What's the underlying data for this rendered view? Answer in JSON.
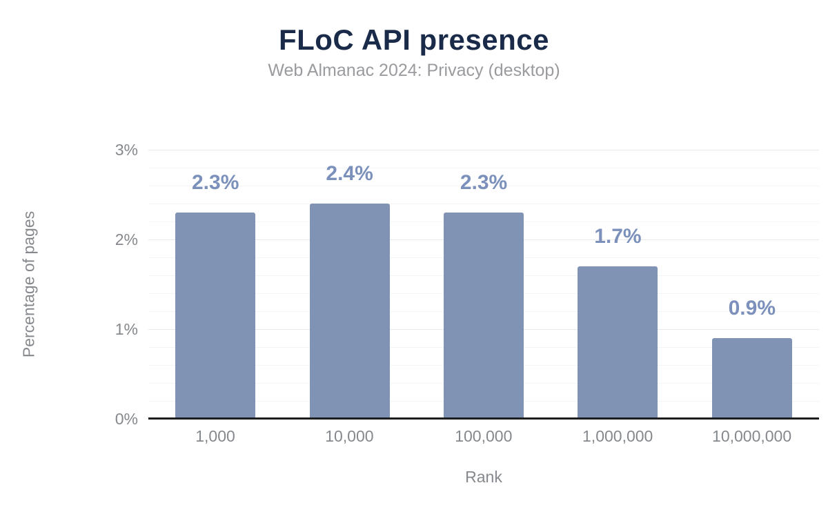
{
  "chart_data": {
    "type": "bar",
    "title": "FLoC API presence",
    "subtitle": "Web Almanac 2024: Privacy (desktop)",
    "xlabel": "Rank",
    "ylabel": "Percentage of pages",
    "categories": [
      "1,000",
      "10,000",
      "100,000",
      "1,000,000",
      "10,000,000"
    ],
    "values": [
      2.3,
      2.4,
      2.3,
      1.7,
      0.9
    ],
    "value_labels": [
      "2.3%",
      "2.4%",
      "2.3%",
      "1.7%",
      "0.9%"
    ],
    "unit": "%",
    "ylim": [
      0,
      3
    ],
    "y_ticks": [
      {
        "value": 0,
        "label": "0%"
      },
      {
        "value": 1,
        "label": "1%"
      },
      {
        "value": 2,
        "label": "2%"
      },
      {
        "value": 3,
        "label": "3%"
      }
    ],
    "gridlines": {
      "show": true,
      "minor_step": 0.2,
      "major_step": 1.0
    },
    "legend_position": "none",
    "colors": {
      "background": "#ffffff",
      "title": "#1a2b49",
      "subtitle": "#999b9e",
      "bar": "#8193b5",
      "value_label": "#7b90ba",
      "axis_text": "#85888c",
      "gridline_minor": "#f4f4f4",
      "gridline_major": "#e9e9e9",
      "baseline": "#1d1d1d"
    }
  }
}
